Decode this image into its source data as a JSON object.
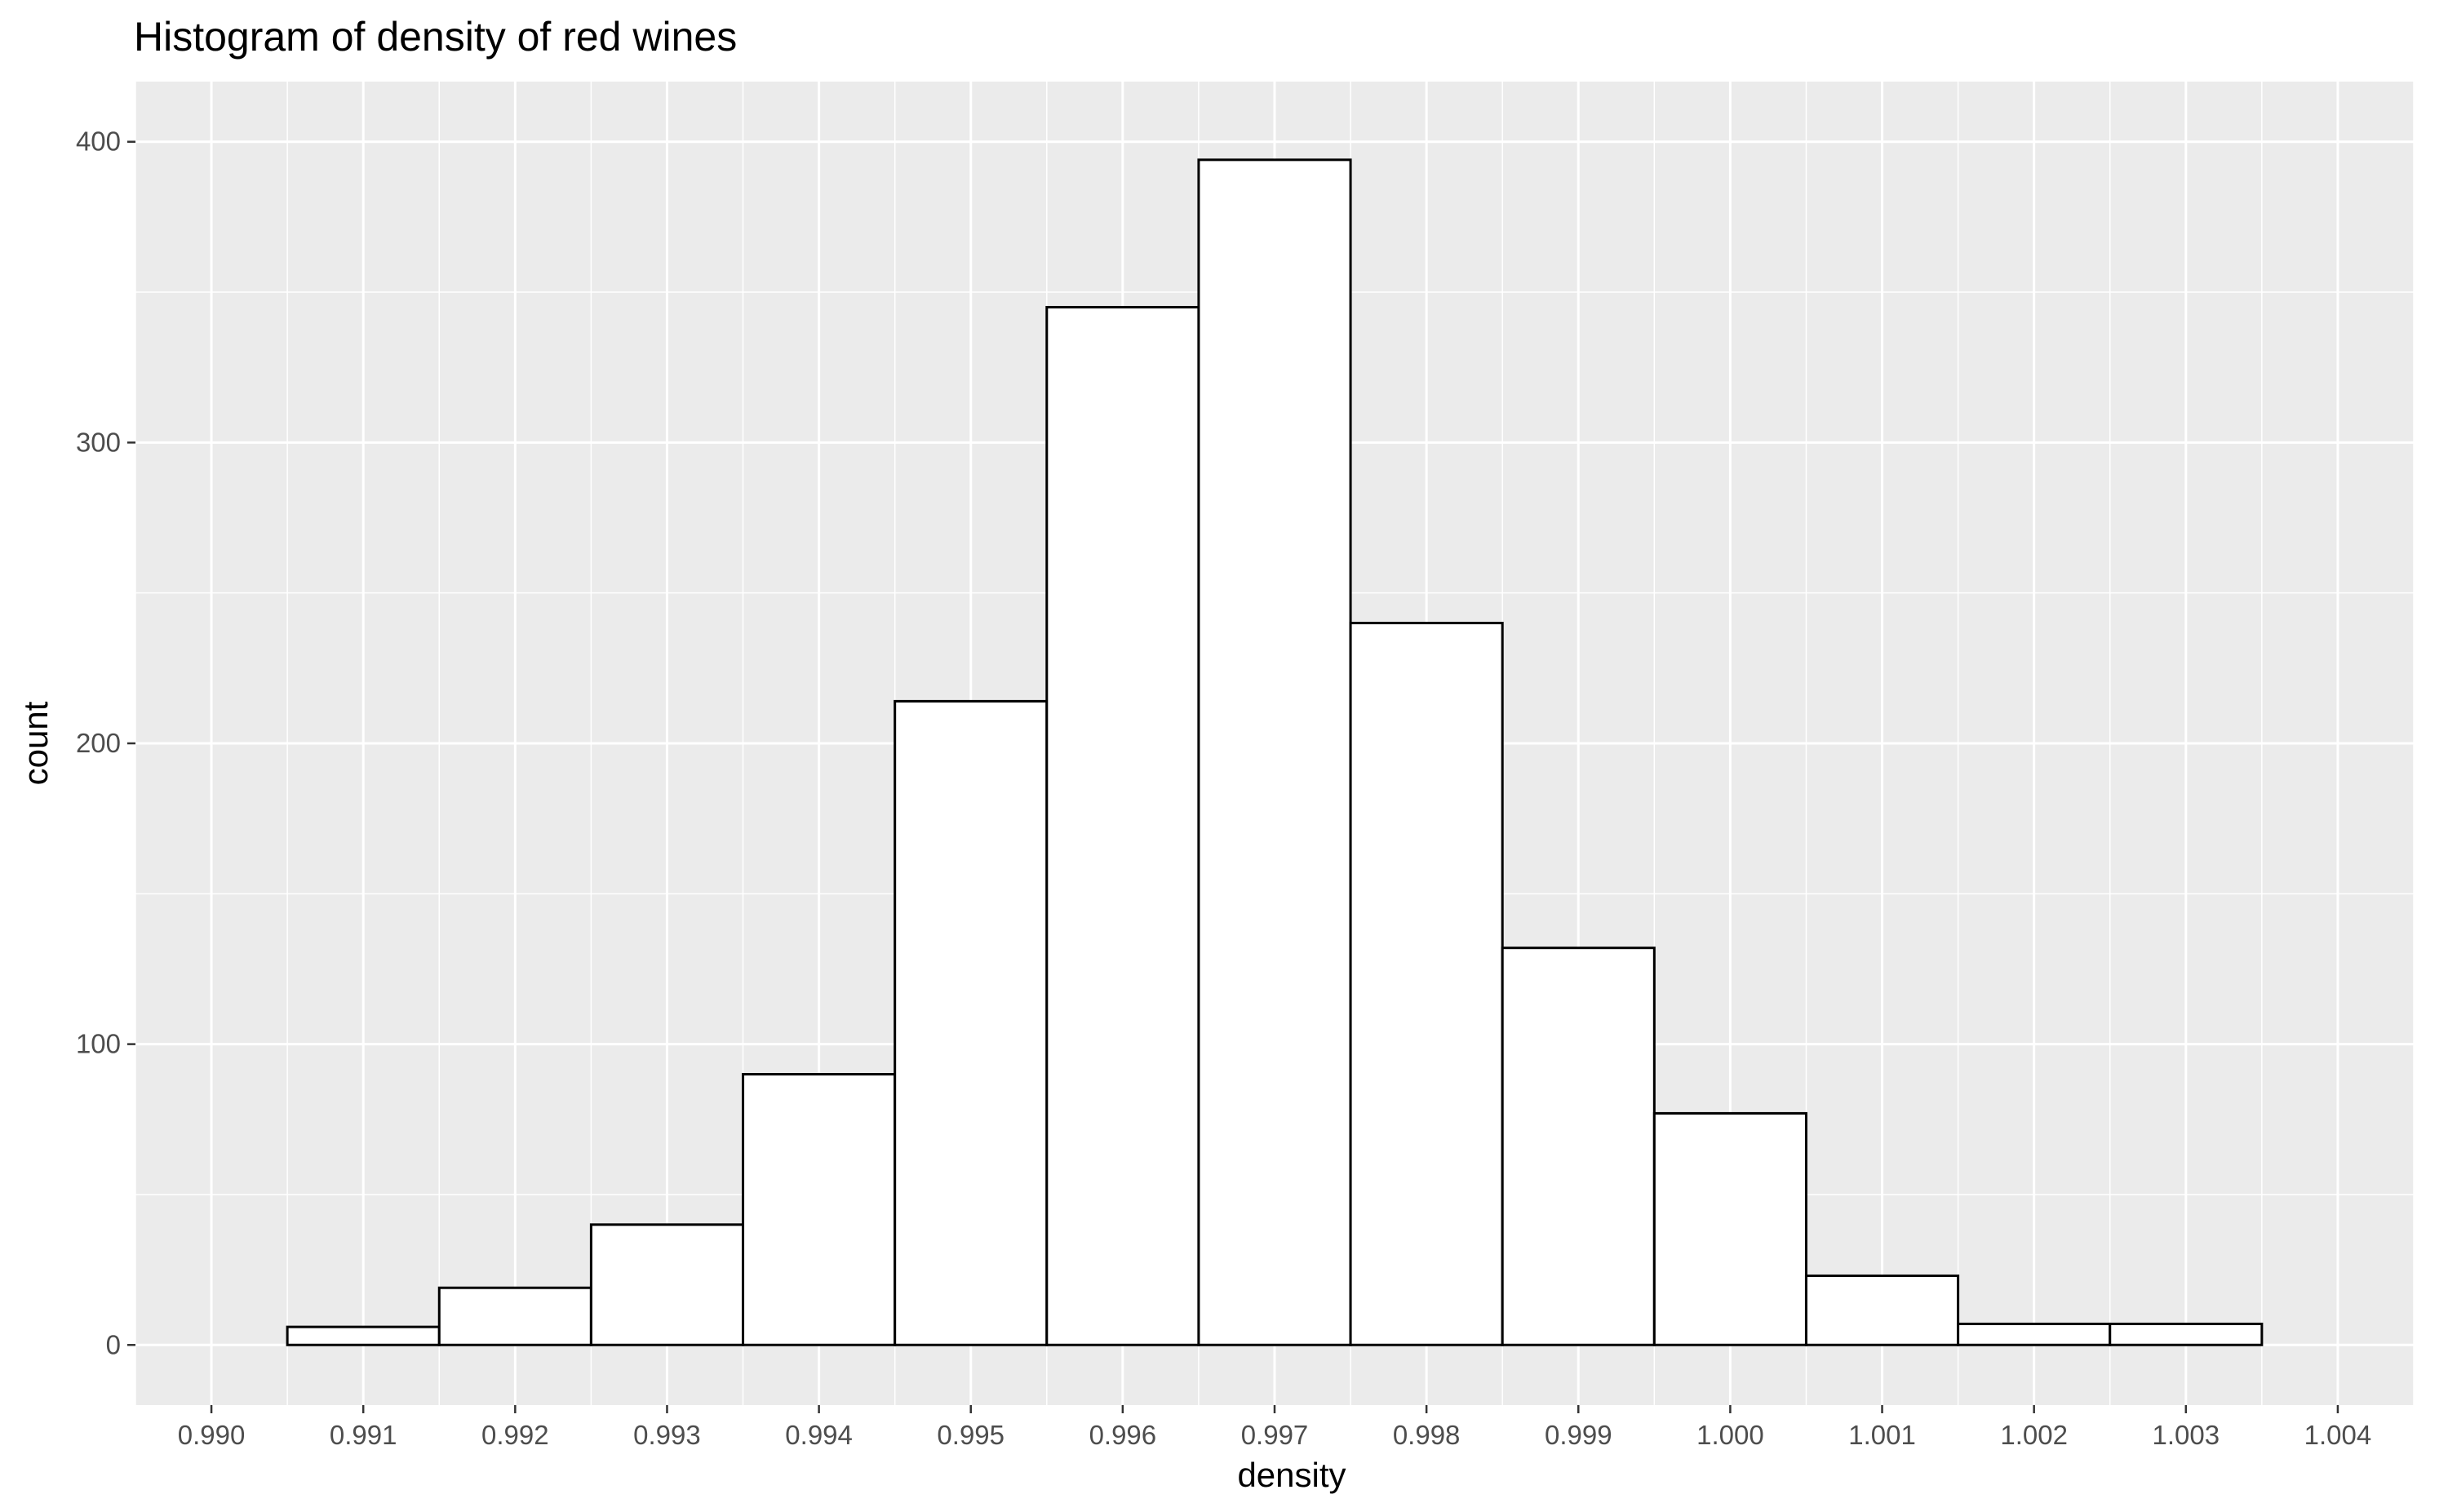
{
  "chart_data": {
    "type": "bar",
    "title": "Histogram of density of red wines",
    "xlabel": "density",
    "ylabel": "count",
    "bins": [
      {
        "x": 0.991,
        "count": 6
      },
      {
        "x": 0.992,
        "count": 19
      },
      {
        "x": 0.993,
        "count": 40
      },
      {
        "x": 0.994,
        "count": 90
      },
      {
        "x": 0.995,
        "count": 214
      },
      {
        "x": 0.996,
        "count": 345
      },
      {
        "x": 0.997,
        "count": 394
      },
      {
        "x": 0.998,
        "count": 240
      },
      {
        "x": 0.999,
        "count": 132
      },
      {
        "x": 1.0,
        "count": 77
      },
      {
        "x": 1.001,
        "count": 23
      },
      {
        "x": 1.002,
        "count": 7
      },
      {
        "x": 1.003,
        "count": 7
      }
    ],
    "binwidth": 0.001,
    "x_ticks": [
      "0.990",
      "0.991",
      "0.992",
      "0.993",
      "0.994",
      "0.995",
      "0.996",
      "0.997",
      "0.998",
      "0.999",
      "1.000",
      "1.001",
      "1.002",
      "1.003",
      "1.004"
    ],
    "y_ticks": [
      "0",
      "100",
      "200",
      "300",
      "400"
    ],
    "xlim": [
      0.9895,
      1.0045
    ],
    "ylim": [
      -20,
      420
    ],
    "grid": true,
    "colors": {
      "panel_background": "#ebebeb",
      "gridline": "#ffffff",
      "bar_fill": "#ffffff",
      "bar_outline": "#000000"
    }
  }
}
